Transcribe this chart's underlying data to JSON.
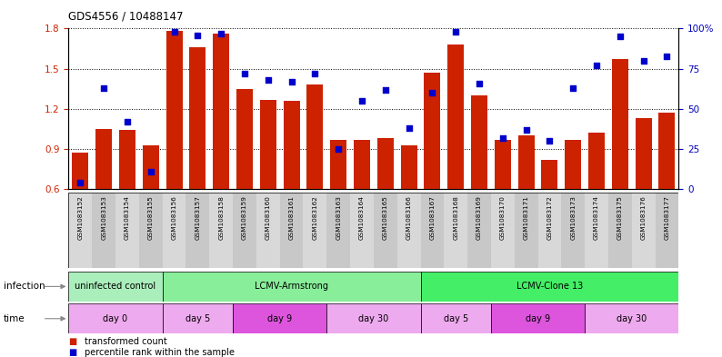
{
  "title": "GDS4556 / 10488147",
  "samples": [
    "GSM1083152",
    "GSM1083153",
    "GSM1083154",
    "GSM1083155",
    "GSM1083156",
    "GSM1083157",
    "GSM1083158",
    "GSM1083159",
    "GSM1083160",
    "GSM1083161",
    "GSM1083162",
    "GSM1083163",
    "GSM1083164",
    "GSM1083165",
    "GSM1083166",
    "GSM1083167",
    "GSM1083168",
    "GSM1083169",
    "GSM1083170",
    "GSM1083171",
    "GSM1083172",
    "GSM1083173",
    "GSM1083174",
    "GSM1083175",
    "GSM1083176",
    "GSM1083177"
  ],
  "bar_values": [
    0.87,
    1.05,
    1.04,
    0.93,
    1.78,
    1.66,
    1.76,
    1.35,
    1.27,
    1.26,
    1.38,
    0.97,
    0.97,
    0.98,
    0.93,
    1.47,
    1.68,
    1.3,
    0.97,
    1.0,
    0.82,
    0.97,
    1.02,
    1.57,
    1.13,
    1.17
  ],
  "dot_values": [
    4,
    63,
    42,
    11,
    98,
    96,
    97,
    72,
    68,
    67,
    72,
    25,
    55,
    62,
    38,
    60,
    98,
    66,
    32,
    37,
    30,
    63,
    77,
    95,
    80,
    83
  ],
  "ylim_left": [
    0.6,
    1.8
  ],
  "ylim_right": [
    0,
    100
  ],
  "yticks_left": [
    0.6,
    0.9,
    1.2,
    1.5,
    1.8
  ],
  "yticks_right": [
    0,
    25,
    50,
    75,
    100
  ],
  "ytick_labels_right": [
    "0",
    "25",
    "50",
    "75",
    "100%"
  ],
  "bar_color": "#cc2200",
  "dot_color": "#0000cc",
  "col_colors": [
    "#d8d8d8",
    "#c8c8c8"
  ],
  "inf_groups": [
    {
      "label": "uninfected control",
      "start": 0,
      "end": 4,
      "color": "#aaeebb"
    },
    {
      "label": "LCMV-Armstrong",
      "start": 4,
      "end": 15,
      "color": "#88ee99"
    },
    {
      "label": "LCMV-Clone 13",
      "start": 15,
      "end": 26,
      "color": "#44ee66"
    }
  ],
  "time_groups": [
    {
      "label": "day 0",
      "start": 0,
      "end": 4,
      "color": "#eeaaee"
    },
    {
      "label": "day 5",
      "start": 4,
      "end": 7,
      "color": "#eeaaee"
    },
    {
      "label": "day 9",
      "start": 7,
      "end": 11,
      "color": "#dd55dd"
    },
    {
      "label": "day 30",
      "start": 11,
      "end": 15,
      "color": "#eeaaee"
    },
    {
      "label": "day 5",
      "start": 15,
      "end": 18,
      "color": "#eeaaee"
    },
    {
      "label": "day 9",
      "start": 18,
      "end": 22,
      "color": "#dd55dd"
    },
    {
      "label": "day 30",
      "start": 22,
      "end": 26,
      "color": "#eeaaee"
    }
  ]
}
